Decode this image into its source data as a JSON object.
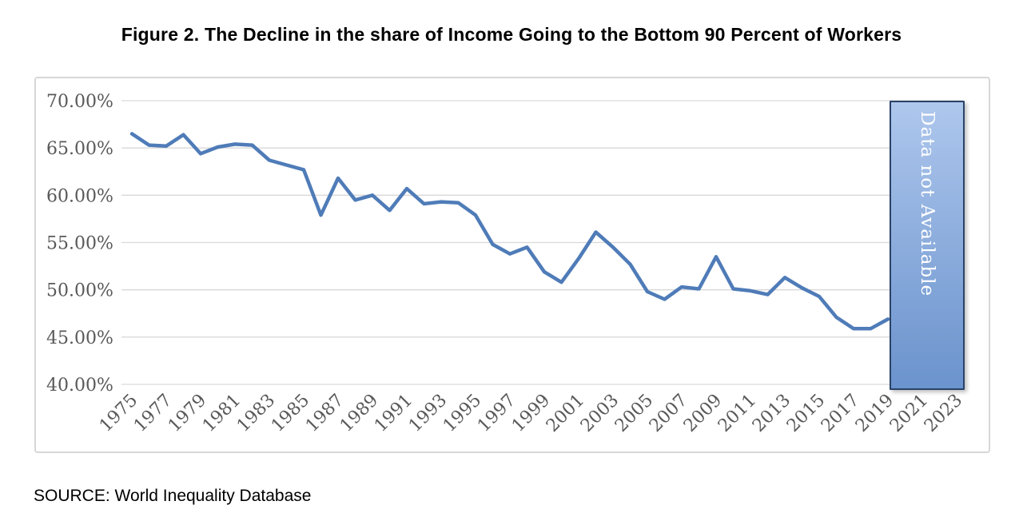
{
  "title": "Figure 2. The Decline in the share of Income Going to the Bottom 90 Percent of Workers",
  "source_note": "SOURCE: World Inequality Database",
  "overlay": {
    "label": "Data not Available"
  },
  "colors": {
    "line": "#4f7cb8",
    "gridline": "#d9d9d9",
    "panel_border": "#d7d7d7",
    "tick_text": "#595959",
    "overlay_top": "#aec7ed",
    "overlay_bottom": "#6b93cd",
    "overlay_border": "#2b4368",
    "overlay_text": "#ffffff",
    "title_text": "#000000"
  },
  "chart_data": {
    "type": "line",
    "title": "Figure 2. The Decline in the share of Income Going to the Bottom 90 Percent of Workers",
    "xlabel": "",
    "ylabel": "",
    "grid": "horizontal",
    "legend": "none",
    "xlim": [
      1975,
      2023
    ],
    "ylim": [
      40,
      70
    ],
    "y_tick_labels": [
      "70.00%",
      "65.00%",
      "60.00%",
      "55.00%",
      "50.00%",
      "45.00%",
      "40.00%"
    ],
    "x_tick_labels": [
      "1975",
      "1977",
      "1979",
      "1981",
      "1983",
      "1985",
      "1987",
      "1989",
      "1991",
      "1993",
      "1995",
      "1997",
      "1999",
      "2001",
      "2003",
      "2005",
      "2007",
      "2009",
      "2011",
      "2013",
      "2015",
      "2017",
      "2019",
      "2021",
      "2023"
    ],
    "x": [
      1975,
      1976,
      1977,
      1978,
      1979,
      1980,
      1981,
      1982,
      1983,
      1984,
      1985,
      1986,
      1987,
      1988,
      1989,
      1990,
      1991,
      1992,
      1993,
      1994,
      1995,
      1996,
      1997,
      1998,
      1999,
      2000,
      2001,
      2002,
      2003,
      2004,
      2005,
      2006,
      2007,
      2008,
      2009,
      2010,
      2011,
      2012,
      2013,
      2014,
      2015,
      2016,
      2017,
      2018,
      2019
    ],
    "values": [
      66.5,
      65.3,
      65.2,
      66.4,
      64.4,
      65.1,
      65.4,
      65.3,
      63.7,
      63.2,
      62.7,
      57.9,
      61.8,
      59.5,
      60.0,
      58.4,
      60.7,
      59.1,
      59.3,
      59.2,
      57.9,
      54.8,
      53.8,
      54.5,
      51.9,
      50.8,
      53.3,
      56.1,
      54.5,
      52.7,
      49.8,
      49.0,
      50.3,
      50.1,
      53.5,
      50.1,
      49.9,
      49.5,
      51.3,
      50.2,
      49.3,
      47.1,
      45.9,
      45.9,
      46.9
    ],
    "annotation": {
      "label": "Data not Available",
      "x_span": [
        2019,
        2023
      ]
    }
  }
}
